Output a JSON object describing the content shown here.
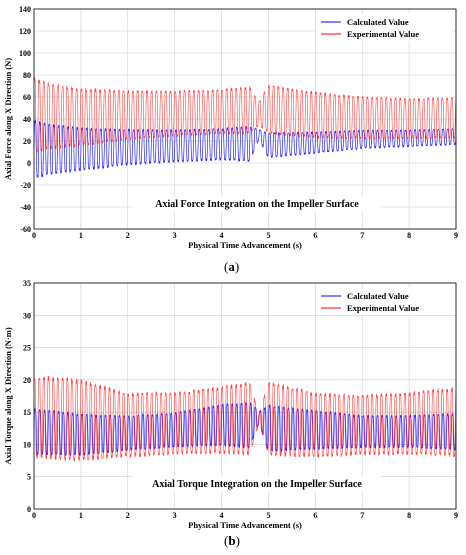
{
  "chart_data": [
    {
      "type": "line",
      "xlabel": "Physical Time Advancement (s)",
      "ylabel": "Axial Force along X Direction (N)",
      "xlim": [
        0,
        9
      ],
      "ylim": [
        -60,
        140
      ],
      "xticks": [
        0,
        1,
        2,
        3,
        4,
        5,
        6,
        7,
        8,
        9
      ],
      "yticks": [
        -60,
        -40,
        -20,
        0,
        20,
        40,
        60,
        80,
        100,
        120,
        140
      ],
      "grid": true,
      "legend_position": "top-right",
      "annotation": "Axial Force Integration on the Impeller Surface",
      "caption_label": "a",
      "series": [
        {
          "name": "Calculated Value",
          "color": "#0000ff",
          "oscillation_frequency_hz": 10,
          "envelope": {
            "t": [
              0,
              0.3,
              1,
              2,
              3,
              4,
              4.6,
              4.8,
              5,
              6,
              7,
              8,
              9
            ],
            "upper": [
              50,
              45,
              40,
              37,
              36,
              37,
              40,
              32,
              32,
              32,
              33,
              33,
              34
            ],
            "lower": [
              -25,
              -20,
              -15,
              -8,
              -5,
              -3,
              -5,
              20,
              0,
              5,
              10,
              12,
              14
            ]
          }
        },
        {
          "name": "Experimental Value",
          "color": "#ff0000",
          "oscillation_frequency_hz": 10,
          "envelope": {
            "t": [
              0,
              0.3,
              1,
              2,
              3,
              4,
              4.6,
              4.8,
              5,
              6,
              7,
              8,
              9
            ],
            "upper": [
              92,
              85,
              78,
              75,
              74,
              75,
              78,
              60,
              80,
              73,
              68,
              66,
              67
            ],
            "lower": [
              -5,
              0,
              5,
              12,
              16,
              18,
              18,
              30,
              18,
              14,
              14,
              14,
              15
            ]
          }
        }
      ]
    },
    {
      "type": "line",
      "xlabel": "Physical Time Advancement (s)",
      "ylabel": "Axial Torque along X Direction (N·m)",
      "xlim": [
        0,
        9
      ],
      "ylim": [
        0,
        35
      ],
      "xticks": [
        0,
        1,
        2,
        3,
        4,
        5,
        6,
        7,
        8,
        9
      ],
      "yticks": [
        0,
        5,
        10,
        15,
        20,
        25,
        30,
        35
      ],
      "grid": true,
      "legend_position": "top-right",
      "annotation": "Axial Torque Integration on the Impeller Surface",
      "caption_label": "b",
      "series": [
        {
          "name": "Calculated Value",
          "color": "#0000ff",
          "oscillation_frequency_hz": 10,
          "envelope": {
            "t": [
              0,
              0.5,
              1,
              2,
              3,
              4,
              4.6,
              4.8,
              5,
              6,
              7,
              8,
              9
            ],
            "upper": [
              17,
              16.5,
              16,
              15.5,
              16,
              17.5,
              18,
              15.5,
              17.5,
              16.5,
              15.5,
              15.5,
              16
            ],
            "lower": [
              7,
              7,
              7,
              8,
              8.5,
              8.5,
              8,
              13,
              7.5,
              8,
              8.5,
              8.5,
              8
            ]
          }
        },
        {
          "name": "Experimental Value",
          "color": "#ff0000",
          "oscillation_frequency_hz": 10,
          "envelope": {
            "t": [
              0,
              0.5,
              1,
              2,
              3,
              4,
              4.6,
              4.8,
              5,
              6,
              7,
              8,
              9
            ],
            "upper": [
              23,
              23,
              22.5,
              20,
              20,
              21,
              22,
              15,
              22,
              20,
              19.5,
              20,
              21
            ],
            "lower": [
              5.5,
              5,
              5,
              6,
              6.5,
              6.5,
              6,
              13,
              6,
              6,
              6.5,
              6.5,
              6
            ]
          }
        }
      ]
    }
  ]
}
